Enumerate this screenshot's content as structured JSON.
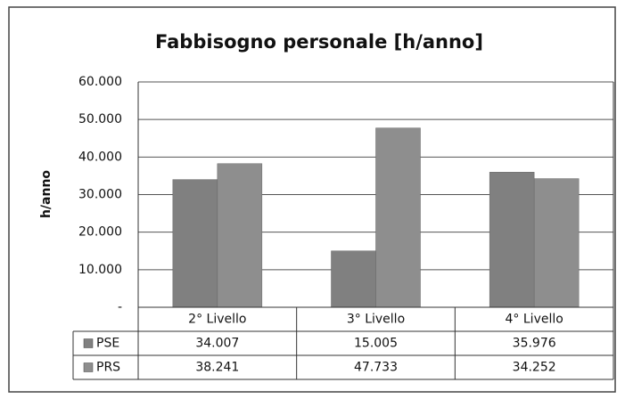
{
  "chart_data": {
    "type": "bar",
    "title": "Fabbisogno personale [h/anno]",
    "y_label": "h/anno",
    "categories": [
      "2° Livello",
      "3° Livello",
      "4° Livello"
    ],
    "series": [
      {
        "name": "PSE",
        "color": "#808080",
        "values": [
          34007,
          15005,
          35976
        ],
        "value_labels": [
          "34.007",
          "15.005",
          "35.976"
        ]
      },
      {
        "name": "PRS",
        "color": "#8e8e8e",
        "values": [
          38241,
          47733,
          34252
        ],
        "value_labels": [
          "38.241",
          "47.733",
          "34.252"
        ]
      }
    ],
    "ylim": [
      0,
      60000
    ],
    "yticks": [
      {
        "value": 0,
        "label": "-"
      },
      {
        "value": 10000,
        "label": "10.000"
      },
      {
        "value": 20000,
        "label": "20.000"
      },
      {
        "value": 30000,
        "label": "30.000"
      },
      {
        "value": 40000,
        "label": "40.000"
      },
      {
        "value": 50000,
        "label": "50.000"
      },
      {
        "value": 60000,
        "label": "60.000"
      }
    ],
    "grid": true,
    "data_table": true
  }
}
